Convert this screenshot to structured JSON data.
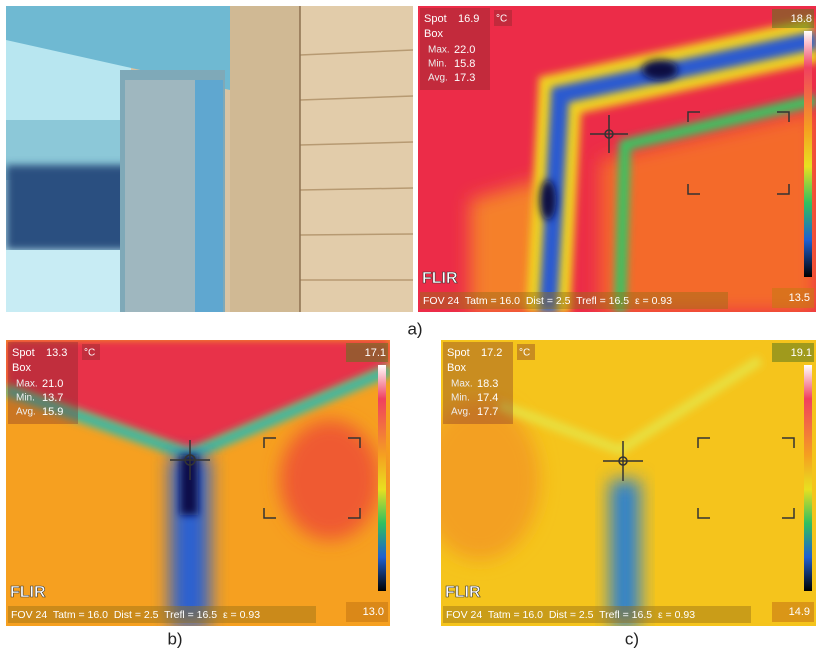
{
  "labels": {
    "spot": "Spot",
    "unit": "°C",
    "box": "Box",
    "max": "Max.",
    "min": "Min.",
    "avg": "Avg.",
    "logo": "FLIR",
    "footer": "FOV 24  Tatm = 16.0  Dist = 2.5  Trefl = 16.5  ε = 0.93"
  },
  "panels": [
    {
      "spot": "16.9",
      "max": "22.0",
      "min": "15.8",
      "avg": "17.3",
      "scale_max": "18.8",
      "scale_min": "13.5"
    },
    {
      "spot": "13.3",
      "max": "21.0",
      "min": "13.7",
      "avg": "15.9",
      "scale_max": "17.1",
      "scale_min": "13.0"
    },
    {
      "spot": "17.2",
      "max": "18.3",
      "min": "17.4",
      "avg": "17.7",
      "scale_max": "19.1",
      "scale_min": "14.9"
    }
  ],
  "captions": [
    "a)",
    "b)",
    "c)"
  ]
}
